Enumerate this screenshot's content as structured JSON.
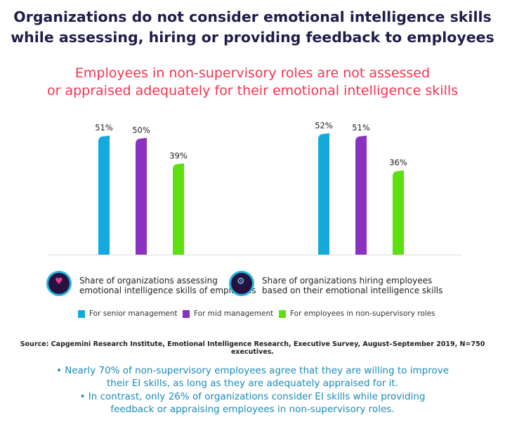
{
  "title": [
    "Organizations do not consider emotional intelligence skills",
    "while assessing, hiring or providing feedback to employees"
  ],
  "subtitle": [
    "Employees in non-supervisory roles are not assessed",
    "or appraised adequately for their emotional intelligence skills"
  ],
  "chart_data": {
    "type": "bar",
    "categories": [
      "Share of organizations assessing emotional intelligence skills of employees",
      "Share of organizations hiring employees based on their emotional intelligence skills"
    ],
    "category_lines": [
      [
        "Share of organizations assessing",
        "emotional intelligence skills of employees"
      ],
      [
        "Share of organizations hiring employees",
        "based on their emotional intelligence skills"
      ]
    ],
    "series": [
      {
        "name": "For senior management",
        "color": "#14a9dc",
        "values": [
          51,
          52
        ],
        "labels": [
          "51%",
          "52%"
        ]
      },
      {
        "name": "For mid management",
        "color": "#8a31c0",
        "values": [
          50,
          51
        ],
        "labels": [
          "50%",
          "51%"
        ]
      },
      {
        "name": "For employees in non-supervisory roles",
        "color": "#5ce010",
        "values": [
          39,
          36
        ],
        "labels": [
          "39%",
          "36%"
        ]
      }
    ],
    "ylim": [
      0,
      55
    ],
    "legend": "bottom"
  },
  "source": "Source: Capgemini Research Institute, Emotional Intelligence Research, Executive Survey, August–September 2019, N=750 executives.",
  "bullets": [
    [
      "• Nearly 70% of non-supervisory employees agree that they are willing to improve",
      "their EI skills, as long as they are adequately appraised for it."
    ],
    [
      "• In contrast, only 26% of organizations consider EI skills while providing",
      "feedback or appraising employees in non-supervisory roles."
    ]
  ]
}
